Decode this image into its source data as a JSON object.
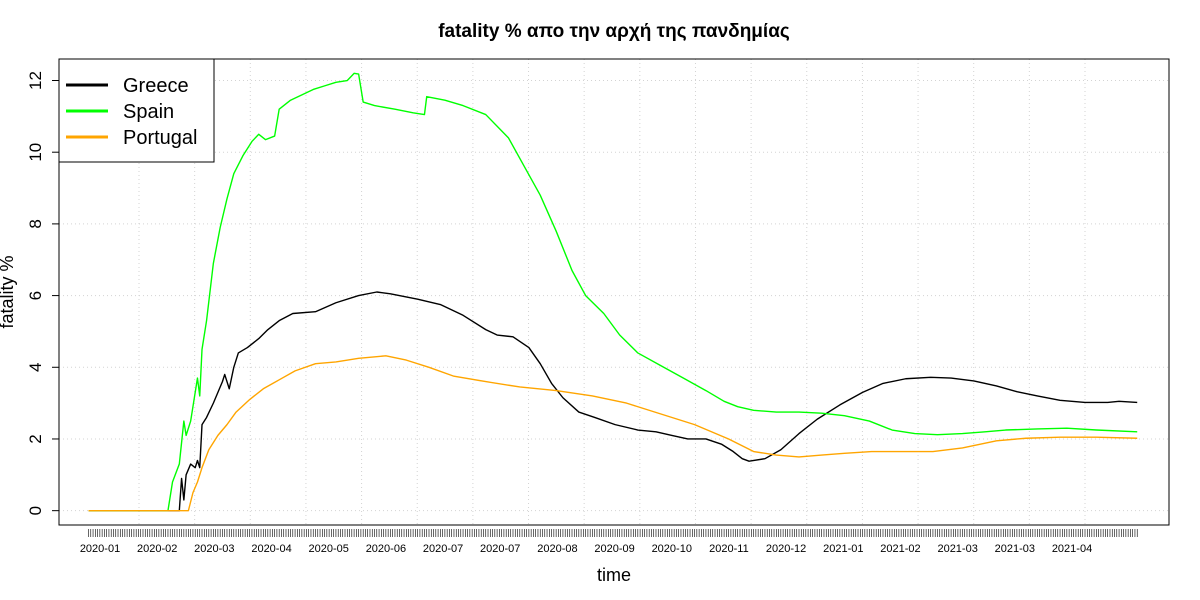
{
  "chart_data": {
    "type": "line",
    "title": "fatality % απο την αρχή της πανδημίας",
    "xlabel": "time",
    "ylabel": "fatality %",
    "ylim": [
      -0.4,
      12.6
    ],
    "yticks": [
      0,
      2,
      4,
      6,
      8,
      10,
      12
    ],
    "x_start": "2020-01-22",
    "x_end": "2021-04-28",
    "x_range": [
      "2020-01-09",
      "2021-05-12"
    ],
    "xtick_labels": [
      "2020-01",
      "2020-02",
      "2020-03",
      "2020-04",
      "2020-05",
      "2020-06",
      "2020-07",
      "2020-07",
      "2020-08",
      "2020-09",
      "2020-10",
      "2020-11",
      "2020-12",
      "2021-01",
      "2021-02",
      "2021-03",
      "2021-03",
      "2021-04"
    ],
    "grid": true,
    "legend_position": "top-left",
    "series": [
      {
        "name": "Greece",
        "color": "#000000",
        "points": [
          [
            "2020-01-22",
            0
          ],
          [
            "2020-02-24",
            0
          ],
          [
            "2020-02-27",
            0
          ],
          [
            "2020-03-02",
            0
          ],
          [
            "2020-03-03",
            0.9
          ],
          [
            "2020-03-04",
            0.3
          ],
          [
            "2020-03-05",
            1.0
          ],
          [
            "2020-03-07",
            1.3
          ],
          [
            "2020-03-09",
            1.2
          ],
          [
            "2020-03-10",
            1.4
          ],
          [
            "2020-03-11",
            1.2
          ],
          [
            "2020-03-12",
            2.4
          ],
          [
            "2020-03-14",
            2.6
          ],
          [
            "2020-03-17",
            3.0
          ],
          [
            "2020-03-19",
            3.3
          ],
          [
            "2020-03-21",
            3.6
          ],
          [
            "2020-03-22",
            3.8
          ],
          [
            "2020-03-24",
            3.4
          ],
          [
            "2020-03-26",
            4.0
          ],
          [
            "2020-03-28",
            4.4
          ],
          [
            "2020-04-01",
            4.55
          ],
          [
            "2020-04-06",
            4.8
          ],
          [
            "2020-04-10",
            5.05
          ],
          [
            "2020-04-15",
            5.3
          ],
          [
            "2020-04-21",
            5.5
          ],
          [
            "2020-05-01",
            5.55
          ],
          [
            "2020-05-10",
            5.8
          ],
          [
            "2020-05-20",
            6.0
          ],
          [
            "2020-05-28",
            6.1
          ],
          [
            "2020-06-03",
            6.05
          ],
          [
            "2020-06-15",
            5.9
          ],
          [
            "2020-06-25",
            5.75
          ],
          [
            "2020-07-05",
            5.45
          ],
          [
            "2020-07-15",
            5.05
          ],
          [
            "2020-07-20",
            4.9
          ],
          [
            "2020-07-27",
            4.85
          ],
          [
            "2020-08-03",
            4.55
          ],
          [
            "2020-08-08",
            4.1
          ],
          [
            "2020-08-13",
            3.55
          ],
          [
            "2020-08-18",
            3.15
          ],
          [
            "2020-08-25",
            2.75
          ],
          [
            "2020-09-01",
            2.6
          ],
          [
            "2020-09-10",
            2.4
          ],
          [
            "2020-09-20",
            2.25
          ],
          [
            "2020-09-28",
            2.2
          ],
          [
            "2020-10-05",
            2.1
          ],
          [
            "2020-10-12",
            2.0
          ],
          [
            "2020-10-20",
            2.0
          ],
          [
            "2020-10-27",
            1.85
          ],
          [
            "2020-11-01",
            1.65
          ],
          [
            "2020-11-05",
            1.45
          ],
          [
            "2020-11-08",
            1.38
          ],
          [
            "2020-11-15",
            1.45
          ],
          [
            "2020-11-22",
            1.7
          ],
          [
            "2020-11-30",
            2.15
          ],
          [
            "2020-12-08",
            2.55
          ],
          [
            "2020-12-18",
            2.95
          ],
          [
            "2020-12-28",
            3.3
          ],
          [
            "2021-01-06",
            3.55
          ],
          [
            "2021-01-16",
            3.68
          ],
          [
            "2021-01-27",
            3.72
          ],
          [
            "2021-02-05",
            3.7
          ],
          [
            "2021-02-15",
            3.62
          ],
          [
            "2021-02-25",
            3.48
          ],
          [
            "2021-03-06",
            3.32
          ],
          [
            "2021-03-15",
            3.2
          ],
          [
            "2021-03-25",
            3.08
          ],
          [
            "2021-04-05",
            3.02
          ],
          [
            "2021-04-15",
            3.02
          ],
          [
            "2021-04-20",
            3.05
          ],
          [
            "2021-04-28",
            3.02
          ]
        ]
      },
      {
        "name": "Spain",
        "color": "#00ff00",
        "points": [
          [
            "2020-01-22",
            0
          ],
          [
            "2020-02-24",
            0
          ],
          [
            "2020-02-26",
            0
          ],
          [
            "2020-02-28",
            0.8
          ],
          [
            "2020-03-02",
            1.3
          ],
          [
            "2020-03-04",
            2.5
          ],
          [
            "2020-03-05",
            2.1
          ],
          [
            "2020-03-07",
            2.5
          ],
          [
            "2020-03-10",
            3.7
          ],
          [
            "2020-03-11",
            3.2
          ],
          [
            "2020-03-12",
            4.5
          ],
          [
            "2020-03-14",
            5.3
          ],
          [
            "2020-03-17",
            6.9
          ],
          [
            "2020-03-20",
            7.9
          ],
          [
            "2020-03-23",
            8.7
          ],
          [
            "2020-03-26",
            9.4
          ],
          [
            "2020-03-30",
            9.9
          ],
          [
            "2020-04-03",
            10.3
          ],
          [
            "2020-04-06",
            10.5
          ],
          [
            "2020-04-09",
            10.35
          ],
          [
            "2020-04-13",
            10.45
          ],
          [
            "2020-04-15",
            11.2
          ],
          [
            "2020-04-20",
            11.45
          ],
          [
            "2020-04-25",
            11.6
          ],
          [
            "2020-04-30",
            11.75
          ],
          [
            "2020-05-05",
            11.85
          ],
          [
            "2020-05-10",
            11.95
          ],
          [
            "2020-05-15",
            12.0
          ],
          [
            "2020-05-18",
            12.2
          ],
          [
            "2020-05-20",
            12.18
          ],
          [
            "2020-05-22",
            11.4
          ],
          [
            "2020-05-27",
            11.3
          ],
          [
            "2020-06-05",
            11.2
          ],
          [
            "2020-06-13",
            11.1
          ],
          [
            "2020-06-18",
            11.05
          ],
          [
            "2020-06-19",
            11.55
          ],
          [
            "2020-06-27",
            11.45
          ],
          [
            "2020-07-05",
            11.3
          ],
          [
            "2020-07-15",
            11.05
          ],
          [
            "2020-07-25",
            10.4
          ],
          [
            "2020-08-01",
            9.6
          ],
          [
            "2020-08-08",
            8.8
          ],
          [
            "2020-08-15",
            7.8
          ],
          [
            "2020-08-22",
            6.7
          ],
          [
            "2020-08-28",
            6.0
          ],
          [
            "2020-09-05",
            5.5
          ],
          [
            "2020-09-12",
            4.9
          ],
          [
            "2020-09-20",
            4.4
          ],
          [
            "2020-09-30",
            4.05
          ],
          [
            "2020-10-10",
            3.7
          ],
          [
            "2020-10-20",
            3.35
          ],
          [
            "2020-10-28",
            3.05
          ],
          [
            "2020-11-03",
            2.9
          ],
          [
            "2020-11-10",
            2.8
          ],
          [
            "2020-11-20",
            2.75
          ],
          [
            "2020-11-30",
            2.75
          ],
          [
            "2020-12-10",
            2.72
          ],
          [
            "2020-12-20",
            2.65
          ],
          [
            "2020-12-31",
            2.5
          ],
          [
            "2021-01-10",
            2.25
          ],
          [
            "2021-01-20",
            2.15
          ],
          [
            "2021-01-30",
            2.12
          ],
          [
            "2021-02-10",
            2.15
          ],
          [
            "2021-02-20",
            2.2
          ],
          [
            "2021-03-01",
            2.25
          ],
          [
            "2021-03-15",
            2.28
          ],
          [
            "2021-03-28",
            2.3
          ],
          [
            "2021-04-10",
            2.25
          ],
          [
            "2021-04-28",
            2.2
          ]
        ]
      },
      {
        "name": "Portugal",
        "color": "#ffa500",
        "points": [
          [
            "2020-01-22",
            0
          ],
          [
            "2020-02-24",
            0
          ],
          [
            "2020-03-03",
            0
          ],
          [
            "2020-03-06",
            0
          ],
          [
            "2020-03-08",
            0.5
          ],
          [
            "2020-03-10",
            0.8
          ],
          [
            "2020-03-12",
            1.2
          ],
          [
            "2020-03-15",
            1.7
          ],
          [
            "2020-03-19",
            2.1
          ],
          [
            "2020-03-23",
            2.4
          ],
          [
            "2020-03-27",
            2.75
          ],
          [
            "2020-04-02",
            3.1
          ],
          [
            "2020-04-08",
            3.4
          ],
          [
            "2020-04-15",
            3.65
          ],
          [
            "2020-04-22",
            3.9
          ],
          [
            "2020-05-01",
            4.1
          ],
          [
            "2020-05-10",
            4.15
          ],
          [
            "2020-05-20",
            4.25
          ],
          [
            "2020-06-01",
            4.32
          ],
          [
            "2020-06-10",
            4.2
          ],
          [
            "2020-06-20",
            4.0
          ],
          [
            "2020-07-01",
            3.75
          ],
          [
            "2020-07-15",
            3.6
          ],
          [
            "2020-07-30",
            3.45
          ],
          [
            "2020-08-15",
            3.35
          ],
          [
            "2020-08-31",
            3.2
          ],
          [
            "2020-09-15",
            3.0
          ],
          [
            "2020-09-30",
            2.7
          ],
          [
            "2020-10-15",
            2.4
          ],
          [
            "2020-10-30",
            2.0
          ],
          [
            "2020-11-10",
            1.65
          ],
          [
            "2020-11-20",
            1.55
          ],
          [
            "2020-11-30",
            1.5
          ],
          [
            "2020-12-10",
            1.55
          ],
          [
            "2020-12-20",
            1.6
          ],
          [
            "2021-01-01",
            1.65
          ],
          [
            "2021-01-15",
            1.65
          ],
          [
            "2021-01-28",
            1.65
          ],
          [
            "2021-02-10",
            1.75
          ],
          [
            "2021-02-25",
            1.95
          ],
          [
            "2021-03-10",
            2.02
          ],
          [
            "2021-03-25",
            2.05
          ],
          [
            "2021-04-10",
            2.05
          ],
          [
            "2021-04-28",
            2.02
          ]
        ]
      }
    ]
  }
}
